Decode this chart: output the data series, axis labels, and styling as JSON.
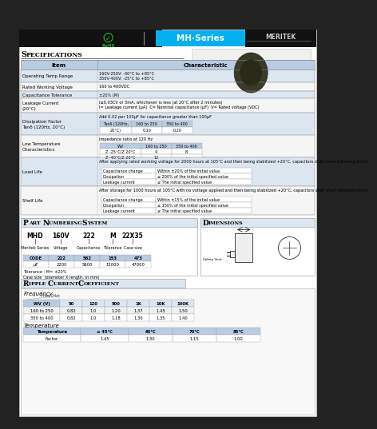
{
  "bg_color": "#222222",
  "page_bg": "#ffffff",
  "header_cyan": "#00b0f0",
  "header_dark": "#111111",
  "blue_header": "#b8cce4",
  "blue_alt": "#dce6f1",
  "row_light": "#f5f5f5",
  "row_mid": "#e8eef5",
  "title": "MH∙Series",
  "brand": "MERITEK",
  "rohs": "RoHS",
  "specs_title": "Specifications",
  "specs_rows": [
    [
      "Operating Temp Range",
      "160V-250V: -40°C to +85°C\n350V-400V: -25°C to +85°C"
    ],
    [
      "Rated Working Voltage",
      "160 to 400VDC"
    ],
    [
      "Capacitance Tolerance",
      "±20% (M)"
    ],
    [
      "Leakage Current (20°C)",
      "I≤0.03CV or 3mA, whichever is less (at 20°C after 2 minutes)\nI= Leakage current (μA)  C= Nominal capacitance (μF)  V= Rated voltage (VDC)"
    ],
    [
      "Dissipation Factor\nTanδ (120Hz, 20°C)",
      "Add 0.02 per 100μF for capacitance greater than 100μF"
    ],
    [
      "Low Temperature\nCharacteristics",
      "Impedance ratio at 120 Hz"
    ],
    [
      "Load Life",
      "After applying rated working voltage for 2000 hours at 105°C and then being stabilized +20°C, capacitors shall meet following limits."
    ],
    [
      "Shelf Life",
      "After storage for 1000 hours at 105°C with no voltage applied and then being stabilized +20°C, capacitors shall meet following limits."
    ]
  ],
  "pns_title": "Part Numbering System",
  "pns_parts": [
    "MHD",
    "160V",
    "222",
    "M",
    "22X35"
  ],
  "pns_labels": [
    "Meritek Series",
    "Voltage",
    "Capacitance",
    "Tolerance",
    "Case size"
  ],
  "cap_headers": [
    "CODE",
    "222",
    "562",
    "153",
    "473"
  ],
  "cap_values": [
    "μF",
    "2200",
    "5600",
    "15000",
    "47000"
  ],
  "dim_title": "Dimensions",
  "rcc_title": "Ripple Current Coefficient",
  "freq_label": "Freq (Hz)",
  "freq_headers": [
    "WV (V)",
    "50",
    "120",
    "500",
    "1K",
    "10K",
    "100K"
  ],
  "freq_rows": [
    [
      "160 to 250",
      "0.82",
      "1.0",
      "1.20",
      "1.37",
      "1.45",
      "1.50"
    ],
    [
      "350 to 400",
      "0.82",
      "1.0",
      "1.18",
      "1.30",
      "1.35",
      "1.40"
    ]
  ],
  "temp_headers": [
    "Temperature",
    "≤ 45°C",
    "60°C",
    "70°C",
    "85°C"
  ],
  "temp_row": [
    "Factor",
    "1.45",
    "1.30",
    "1.15",
    "1.00"
  ],
  "dissip_subtable": [
    [
      "Tanδ (120Hz,",
      "160 to 250",
      "350 to 400"
    ],
    [
      "20°C)",
      "0.10",
      "0.20"
    ]
  ],
  "lowtemp_subtable": [
    [
      "WV",
      "160 to 250",
      "350 to 400"
    ],
    [
      "Z -25°C/Z 20°C",
      "4",
      "8"
    ],
    [
      "Z -40°C/Z 20°C",
      "12",
      "-"
    ]
  ],
  "load_subtable": [
    [
      "Capacitance change",
      "Within ±20% of the initial value"
    ],
    [
      "Dissipation",
      "≤ 200% of the initial specified value"
    ],
    [
      "Leakage current",
      "≤ The initial specified value"
    ]
  ],
  "shelf_subtable": [
    [
      "Capacitance change",
      "Within ±15% of the initial value"
    ],
    [
      "Dissipation",
      "≤ 150% of the initial specified value"
    ],
    [
      "Leakage current",
      "≤ The initial specified value"
    ]
  ]
}
